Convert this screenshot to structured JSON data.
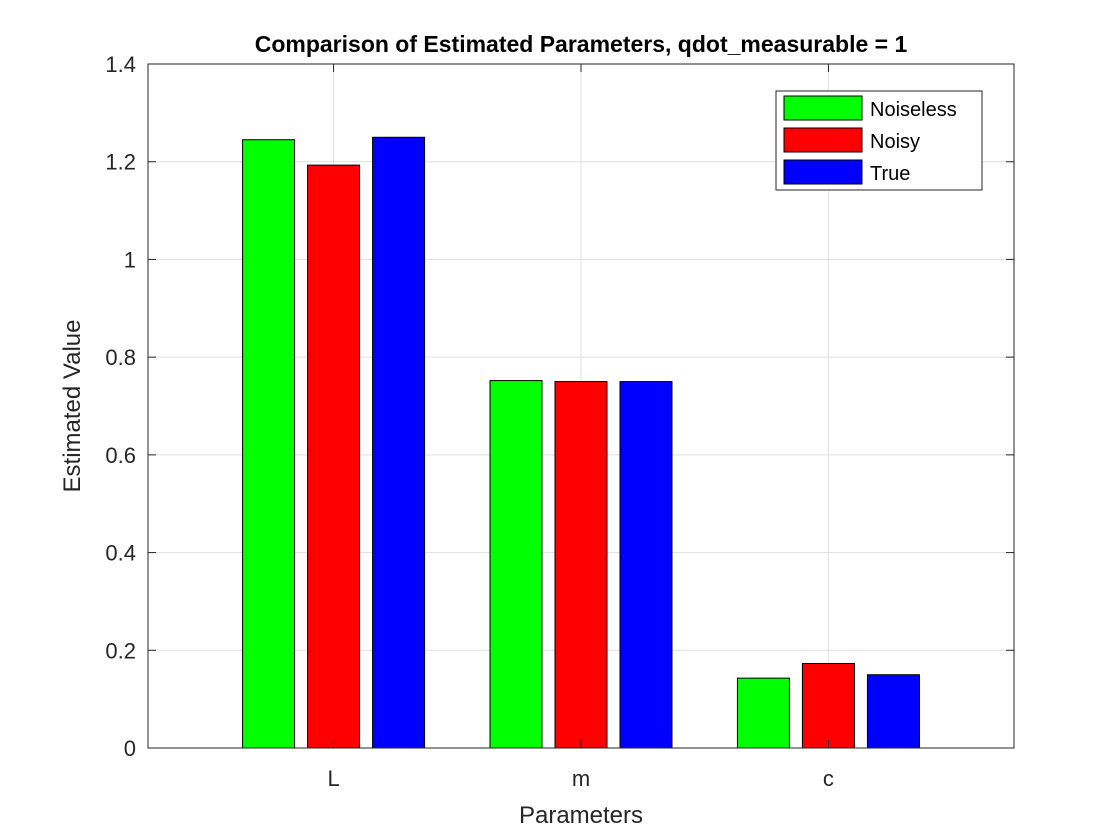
{
  "chart_data": {
    "type": "bar",
    "title": "Comparison of Estimated Parameters, qdot_measurable = 1",
    "xlabel": "Parameters",
    "ylabel": "Estimated Value",
    "categories": [
      "L",
      "m",
      "c"
    ],
    "series": [
      {
        "name": "Noiseless",
        "color": "#00ff00",
        "values": [
          1.245,
          0.752,
          0.143
        ]
      },
      {
        "name": "Noisy",
        "color": "#ff0000",
        "values": [
          1.193,
          0.75,
          0.173
        ]
      },
      {
        "name": "True",
        "color": "#0000ff",
        "values": [
          1.25,
          0.75,
          0.15
        ]
      }
    ],
    "ylim": [
      0,
      1.4
    ],
    "yticks": [
      "0",
      "0.2",
      "0.4",
      "0.6",
      "0.8",
      "1",
      "1.2",
      "1.4"
    ],
    "grid": true,
    "legend_position": "top-right"
  }
}
